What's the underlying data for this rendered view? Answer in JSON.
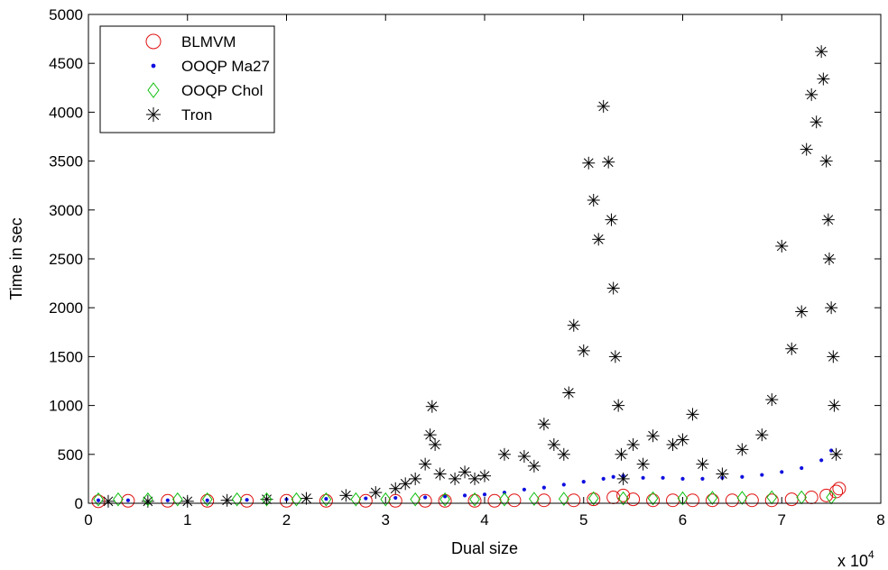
{
  "chart_data": {
    "type": "scatter",
    "title": "",
    "xlabel": "Dual size",
    "ylabel": "Time in sec",
    "x_exponent_label": "x 10",
    "x_exponent_power": "4",
    "xlim": [
      0,
      8
    ],
    "ylim": [
      0,
      5000
    ],
    "xticks": [
      0,
      1,
      2,
      3,
      4,
      5,
      6,
      7,
      8
    ],
    "xtick_labels": [
      "0",
      "1",
      "2",
      "3",
      "4",
      "5",
      "6",
      "7",
      "8"
    ],
    "yticks": [
      0,
      500,
      1000,
      1500,
      2000,
      2500,
      3000,
      3500,
      4000,
      4500,
      5000
    ],
    "ytick_labels": [
      "0",
      "500",
      "1000",
      "1500",
      "2000",
      "2500",
      "3000",
      "3500",
      "4000",
      "4500",
      "5000"
    ],
    "grid": false,
    "legend_position": "top-left",
    "series": [
      {
        "name": "BLMVM",
        "marker": "circle",
        "color": "#e01010",
        "points": [
          [
            0.1,
            20
          ],
          [
            0.4,
            25
          ],
          [
            0.8,
            25
          ],
          [
            1.2,
            25
          ],
          [
            1.6,
            25
          ],
          [
            2.0,
            25
          ],
          [
            2.4,
            25
          ],
          [
            2.8,
            25
          ],
          [
            3.1,
            25
          ],
          [
            3.4,
            25
          ],
          [
            3.6,
            25
          ],
          [
            3.9,
            25
          ],
          [
            4.1,
            25
          ],
          [
            4.3,
            30
          ],
          [
            4.6,
            30
          ],
          [
            4.9,
            30
          ],
          [
            5.1,
            40
          ],
          [
            5.3,
            60
          ],
          [
            5.4,
            80
          ],
          [
            5.5,
            40
          ],
          [
            5.7,
            30
          ],
          [
            5.9,
            30
          ],
          [
            6.1,
            30
          ],
          [
            6.3,
            30
          ],
          [
            6.5,
            30
          ],
          [
            6.7,
            30
          ],
          [
            6.9,
            30
          ],
          [
            7.1,
            40
          ],
          [
            7.3,
            60
          ],
          [
            7.45,
            80
          ],
          [
            7.55,
            120
          ],
          [
            7.58,
            150
          ]
        ]
      },
      {
        "name": "OOQP Ma27",
        "marker": "dot",
        "color": "#1010e0",
        "points": [
          [
            0.1,
            30
          ],
          [
            0.4,
            30
          ],
          [
            0.8,
            30
          ],
          [
            1.2,
            30
          ],
          [
            1.6,
            35
          ],
          [
            2.0,
            40
          ],
          [
            2.4,
            45
          ],
          [
            2.8,
            50
          ],
          [
            3.1,
            55
          ],
          [
            3.4,
            60
          ],
          [
            3.6,
            70
          ],
          [
            3.8,
            80
          ],
          [
            4.0,
            90
          ],
          [
            4.2,
            110
          ],
          [
            4.4,
            140
          ],
          [
            4.6,
            160
          ],
          [
            4.8,
            190
          ],
          [
            5.0,
            220
          ],
          [
            5.2,
            250
          ],
          [
            5.3,
            270
          ],
          [
            5.4,
            280
          ],
          [
            5.6,
            260
          ],
          [
            5.8,
            260
          ],
          [
            6.0,
            250
          ],
          [
            6.2,
            250
          ],
          [
            6.4,
            260
          ],
          [
            6.6,
            270
          ],
          [
            6.8,
            290
          ],
          [
            7.0,
            320
          ],
          [
            7.2,
            360
          ],
          [
            7.4,
            440
          ],
          [
            7.5,
            540
          ]
        ]
      },
      {
        "name": "OOQP Chol",
        "marker": "diamond",
        "color": "#10c010",
        "points": [
          [
            0.1,
            40
          ],
          [
            0.3,
            40
          ],
          [
            0.6,
            40
          ],
          [
            0.9,
            40
          ],
          [
            1.2,
            40
          ],
          [
            1.5,
            40
          ],
          [
            1.8,
            40
          ],
          [
            2.1,
            40
          ],
          [
            2.4,
            40
          ],
          [
            2.7,
            40
          ],
          [
            3.0,
            40
          ],
          [
            3.3,
            40
          ],
          [
            3.6,
            40
          ],
          [
            3.9,
            40
          ],
          [
            4.2,
            40
          ],
          [
            4.5,
            45
          ],
          [
            4.8,
            45
          ],
          [
            5.1,
            50
          ],
          [
            5.4,
            50
          ],
          [
            5.7,
            50
          ],
          [
            6.0,
            50
          ],
          [
            6.3,
            55
          ],
          [
            6.6,
            55
          ],
          [
            6.9,
            60
          ],
          [
            7.2,
            60
          ],
          [
            7.5,
            60
          ]
        ]
      },
      {
        "name": "Tron",
        "marker": "star",
        "color": "#000000",
        "points": [
          [
            0.2,
            20
          ],
          [
            0.6,
            20
          ],
          [
            1.0,
            20
          ],
          [
            1.4,
            30
          ],
          [
            1.8,
            40
          ],
          [
            2.2,
            50
          ],
          [
            2.6,
            80
          ],
          [
            2.9,
            110
          ],
          [
            3.1,
            150
          ],
          [
            3.2,
            200
          ],
          [
            3.3,
            250
          ],
          [
            3.4,
            400
          ],
          [
            3.45,
            700
          ],
          [
            3.47,
            990
          ],
          [
            3.5,
            600
          ],
          [
            3.55,
            300
          ],
          [
            3.7,
            250
          ],
          [
            3.8,
            320
          ],
          [
            3.9,
            250
          ],
          [
            4.0,
            280
          ],
          [
            4.2,
            500
          ],
          [
            4.4,
            480
          ],
          [
            4.5,
            380
          ],
          [
            4.6,
            810
          ],
          [
            4.7,
            600
          ],
          [
            4.8,
            500
          ],
          [
            4.85,
            1130
          ],
          [
            4.9,
            1820
          ],
          [
            5.0,
            1560
          ],
          [
            5.05,
            3480
          ],
          [
            5.1,
            3100
          ],
          [
            5.15,
            2700
          ],
          [
            5.2,
            4060
          ],
          [
            5.25,
            3490
          ],
          [
            5.28,
            2900
          ],
          [
            5.3,
            2200
          ],
          [
            5.32,
            1500
          ],
          [
            5.35,
            1000
          ],
          [
            5.38,
            500
          ],
          [
            5.4,
            250
          ],
          [
            5.5,
            600
          ],
          [
            5.6,
            400
          ],
          [
            5.7,
            690
          ],
          [
            5.9,
            600
          ],
          [
            6.0,
            650
          ],
          [
            6.1,
            910
          ],
          [
            6.2,
            400
          ],
          [
            6.4,
            300
          ],
          [
            6.6,
            550
          ],
          [
            6.8,
            700
          ],
          [
            6.9,
            1060
          ],
          [
            7.0,
            2630
          ],
          [
            7.1,
            1580
          ],
          [
            7.2,
            1960
          ],
          [
            7.25,
            3620
          ],
          [
            7.3,
            4180
          ],
          [
            7.35,
            3900
          ],
          [
            7.4,
            4620
          ],
          [
            7.42,
            4340
          ],
          [
            7.45,
            3500
          ],
          [
            7.47,
            2900
          ],
          [
            7.48,
            2500
          ],
          [
            7.5,
            2000
          ],
          [
            7.52,
            1500
          ],
          [
            7.53,
            1000
          ],
          [
            7.55,
            500
          ]
        ]
      }
    ]
  }
}
